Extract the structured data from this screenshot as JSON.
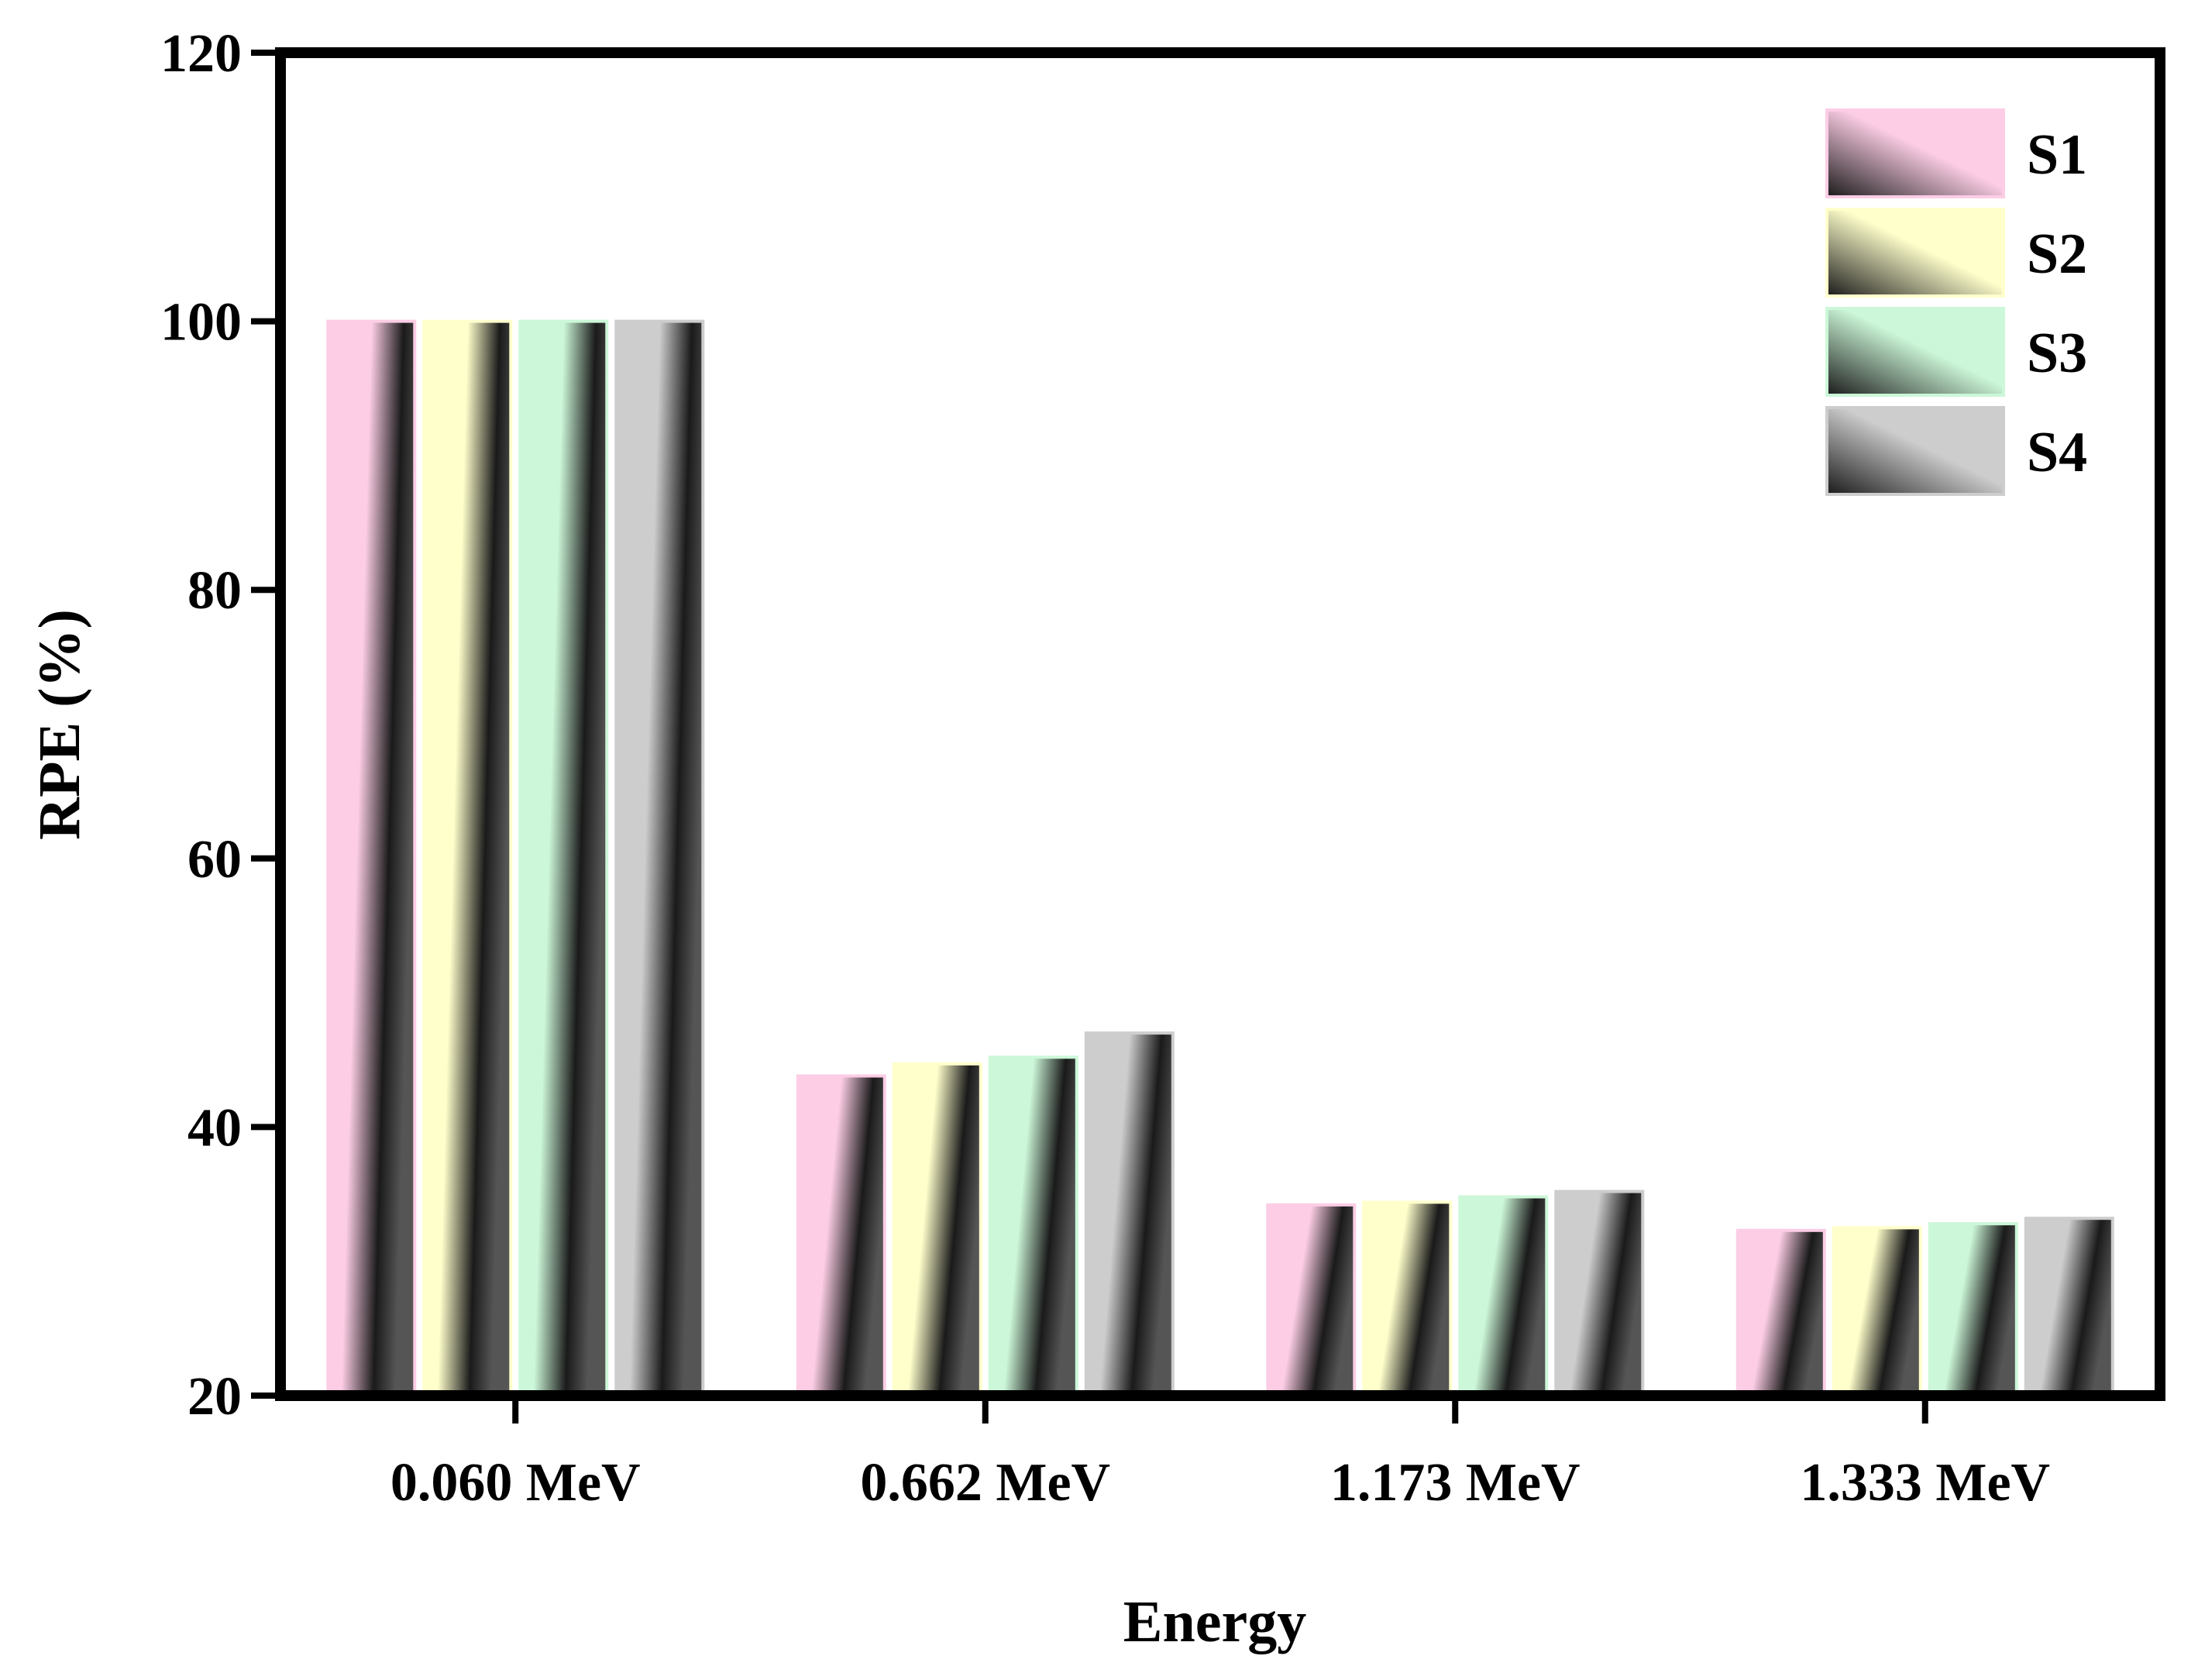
{
  "chart_data": {
    "type": "bar",
    "title": "",
    "xlabel": "Energy",
    "ylabel": "RPE (%)",
    "ylim": [
      20,
      120
    ],
    "yticks": [
      "20",
      "40",
      "60",
      "80",
      "100",
      "120"
    ],
    "categories": [
      "0.060 MeV",
      "0.662 MeV",
      "1.173 MeV",
      "1.333 MeV"
    ],
    "series": [
      {
        "name": "S1",
        "values": [
          100,
          43.8,
          34.2,
          32.3
        ],
        "color": "#fccde5"
      },
      {
        "name": "S2",
        "values": [
          100,
          44.7,
          34.4,
          32.5
        ],
        "color": "#ffffcc"
      },
      {
        "name": "S3",
        "values": [
          100,
          45.2,
          34.8,
          32.8
        ],
        "color": "#ccf7d8"
      },
      {
        "name": "S4",
        "values": [
          100,
          47.0,
          35.2,
          33.2
        ],
        "color": "#cdcdcd"
      }
    ],
    "legend_position": "top-right",
    "grid": false
  }
}
